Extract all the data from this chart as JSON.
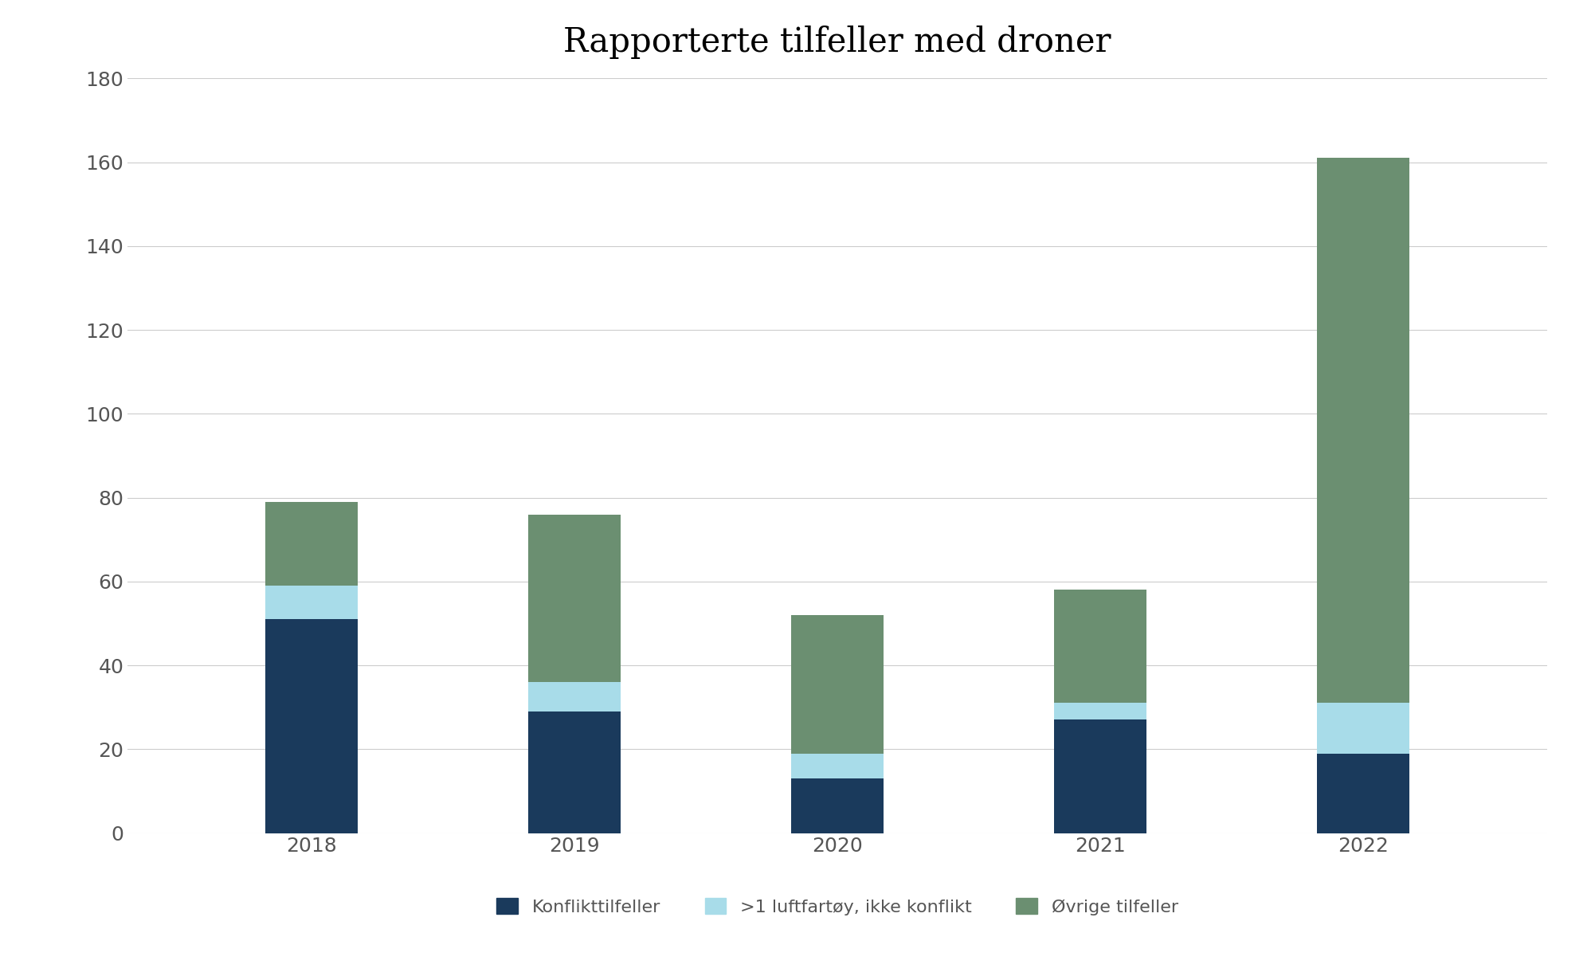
{
  "title": "Rapporterte tilfeller med droner",
  "years": [
    "2018",
    "2019",
    "2020",
    "2021",
    "2022"
  ],
  "konflikt": [
    51,
    29,
    13,
    27,
    19
  ],
  "luftfartoy": [
    8,
    7,
    6,
    4,
    12
  ],
  "ovrige": [
    20,
    40,
    33,
    27,
    130
  ],
  "color_konflikt": "#1a3a5c",
  "color_luftfartoy": "#a8dce9",
  "color_ovrige": "#6b8f71",
  "legend_labels": [
    "Konflikttilfeller",
    ">1 luftfartøy, ikke konflikt",
    "Øvrige tilfeller"
  ],
  "ylim": [
    0,
    180
  ],
  "yticks": [
    0,
    20,
    40,
    60,
    80,
    100,
    120,
    140,
    160,
    180
  ],
  "background_color": "#ffffff",
  "title_fontsize": 30,
  "tick_fontsize": 18,
  "tick_color": "#555555",
  "legend_fontsize": 16,
  "bar_width": 0.35,
  "grid_color": "#cccccc",
  "grid_linewidth": 0.8
}
